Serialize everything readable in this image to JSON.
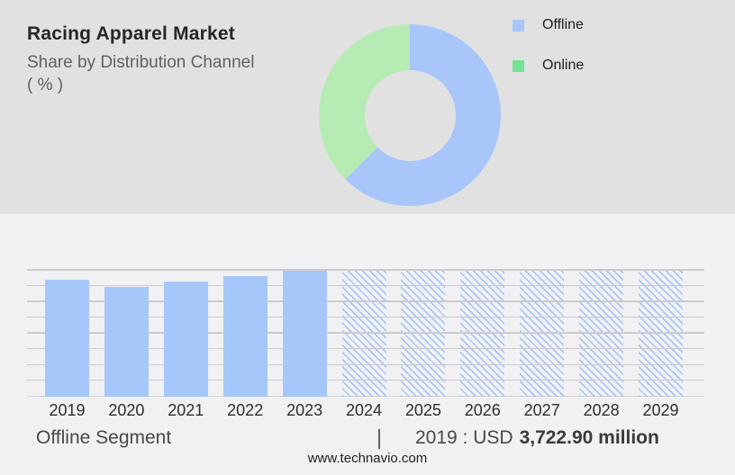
{
  "header": {
    "title": "Racing Apparel Market",
    "subtitle": "Share by Distribution Channel",
    "unit": "( % )"
  },
  "legend": {
    "items": [
      {
        "label": "Offline",
        "color": "#a8c6fa"
      },
      {
        "label": "Online",
        "color": "#72e392"
      }
    ]
  },
  "footer": {
    "segment_label": "Offline Segment",
    "separator": "|",
    "value_prefix": "2019 : USD",
    "value_bold": "3,722.90 million",
    "website": "www.technavio.com"
  },
  "colors": {
    "panel_top_bg": "#e1e1e1",
    "panel_bottom_bg": "#f1f1f3",
    "gridline": "#cbcbcb"
  },
  "chart_data": [
    {
      "type": "pie",
      "subtype": "donut",
      "title": "Racing Apparel Market — Share by Distribution Channel (%)",
      "categories": [
        "Offline",
        "Online"
      ],
      "values": [
        62.5,
        37.5
      ],
      "colors": [
        "#a8c6fa",
        "#b6ecb4"
      ],
      "start_angle_deg": 0,
      "direction": "clockwise",
      "inner_radius_pct": 50,
      "legend_position": "right",
      "data_labels_shown": false
    },
    {
      "type": "bar",
      "title": "Offline Segment market size by year",
      "categories": [
        "2019",
        "2020",
        "2021",
        "2022",
        "2023",
        "2024",
        "2025",
        "2026",
        "2027",
        "2028",
        "2029"
      ],
      "values": [
        3722.9,
        3505,
        3667,
        3830,
        4017,
        4017,
        4017,
        4017,
        4017,
        4017,
        4017
      ],
      "is_forecast": [
        false,
        false,
        false,
        false,
        false,
        true,
        true,
        true,
        true,
        true,
        true
      ],
      "unit": "USD million",
      "labeled_point": {
        "category": "2019",
        "label": "2019 : USD 3,722.90 million"
      },
      "xlabel": "",
      "ylabel": "",
      "ylim": [
        0,
        4017
      ],
      "y_axis_labels_shown": false,
      "gridline_count": 8,
      "grid": true,
      "bar_color": "#a6c7fa",
      "forecast_hatch_color": "#a9c7f3",
      "forecast_style": "diagonal-hatch"
    }
  ]
}
